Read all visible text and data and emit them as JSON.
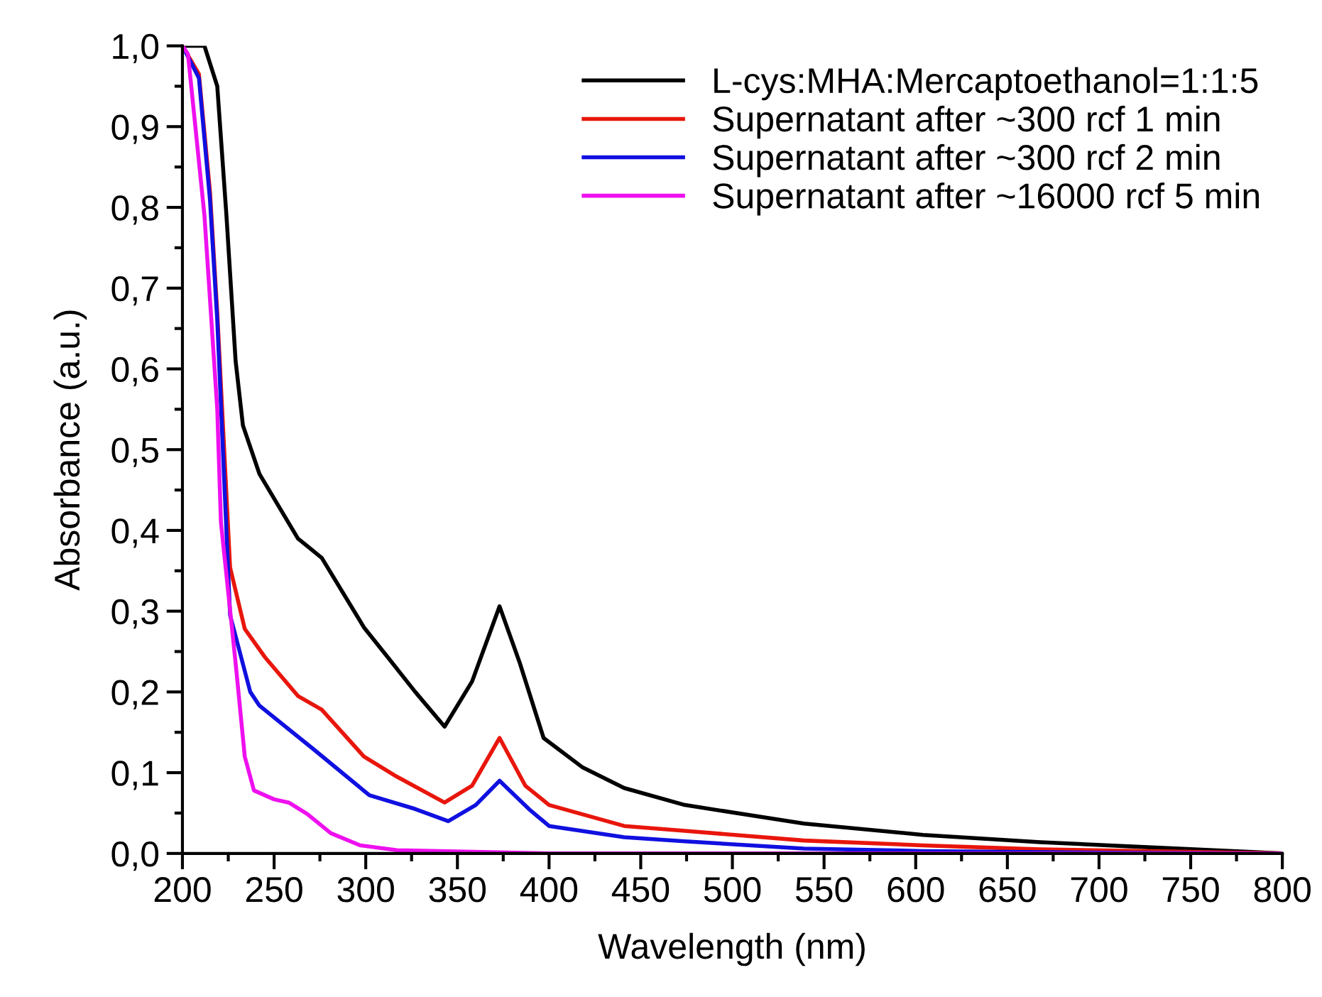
{
  "chart_data": {
    "type": "line",
    "xlabel": "Wavelength (nm)",
    "ylabel": "Absorbance (a.u.)",
    "xlim": [
      200,
      800
    ],
    "ylim": [
      0,
      1.0
    ],
    "xticks": [
      200,
      {
        "value": 225,
        "label": null
      },
      250,
      {
        "value": 275,
        "label": null
      },
      300,
      {
        "value": 325,
        "label": null
      },
      350,
      {
        "value": 375,
        "label": null
      },
      400,
      {
        "value": 425,
        "label": null
      },
      450,
      {
        "value": 475,
        "label": null
      },
      500,
      {
        "value": 525,
        "label": null
      },
      550,
      {
        "value": 575,
        "label": null
      },
      600,
      {
        "value": 625,
        "label": null
      },
      650,
      {
        "value": 675,
        "label": null
      },
      700,
      {
        "value": 725,
        "label": null
      },
      750,
      {
        "value": 775,
        "label": null
      },
      800
    ],
    "yticks": [
      {
        "value": 0,
        "label": "0,0"
      },
      {
        "value": 0.05,
        "label": null
      },
      {
        "value": 0.1,
        "label": "0,1"
      },
      {
        "value": 0.15,
        "label": null
      },
      {
        "value": 0.2,
        "label": "0,2"
      },
      {
        "value": 0.25,
        "label": null
      },
      {
        "value": 0.3,
        "label": "0,3"
      },
      {
        "value": 0.35,
        "label": null
      },
      {
        "value": 0.4,
        "label": "0,4"
      },
      {
        "value": 0.45,
        "label": null
      },
      {
        "value": 0.5,
        "label": "0,5"
      },
      {
        "value": 0.55,
        "label": null
      },
      {
        "value": 0.6,
        "label": "0,6"
      },
      {
        "value": 0.65,
        "label": null
      },
      {
        "value": 0.7,
        "label": "0,7"
      },
      {
        "value": 0.75,
        "label": null
      },
      {
        "value": 0.8,
        "label": "0,8"
      },
      {
        "value": 0.85,
        "label": null
      },
      {
        "value": 0.9,
        "label": "0,9"
      },
      {
        "value": 0.95,
        "label": null
      },
      {
        "value": 1.0,
        "label": "1,0"
      }
    ],
    "grid": false,
    "legend": "top right",
    "marker": "none",
    "line_style": "solid",
    "series": [
      {
        "name": "L-cys:MHA:Mercaptoethanol=1:1:5",
        "color": "#000000",
        "x": [
          200,
          212,
          219,
          224,
          229,
          233,
          242,
          263,
          276,
          299,
          312,
          327,
          343,
          358,
          373,
          384,
          397,
          418,
          441,
          474,
          539,
          604,
          668,
          733,
          800
        ],
        "values": [
          1.0,
          1.0,
          0.95,
          0.79,
          0.61,
          0.53,
          0.47,
          0.39,
          0.366,
          0.28,
          0.243,
          0.2,
          0.157,
          0.213,
          0.306,
          0.236,
          0.143,
          0.107,
          0.081,
          0.06,
          0.037,
          0.023,
          0.014,
          0.007,
          0.0
        ]
      },
      {
        "name": "Supernatant after ~300 rcf 1 min",
        "color": "#e8160c",
        "x": [
          200,
          209,
          215,
          219,
          226,
          234,
          245,
          263,
          276,
          299,
          317,
          343,
          358,
          373,
          387,
          400,
          441,
          474,
          539,
          604,
          668,
          800
        ],
        "values": [
          1.0,
          0.965,
          0.82,
          0.67,
          0.354,
          0.278,
          0.243,
          0.195,
          0.178,
          0.12,
          0.095,
          0.063,
          0.084,
          0.143,
          0.084,
          0.06,
          0.034,
          0.028,
          0.016,
          0.01,
          0.005,
          0.0
        ]
      },
      {
        "name": "Supernatant after ~300 rcf 2 min",
        "color": "#1010e0",
        "x": [
          200,
          209,
          215,
          219,
          226,
          237,
          242,
          271,
          302,
          327,
          345,
          360,
          373,
          389,
          400,
          441,
          474,
          539,
          604,
          700,
          800
        ],
        "values": [
          1.0,
          0.96,
          0.81,
          0.66,
          0.295,
          0.2,
          0.183,
          0.13,
          0.072,
          0.055,
          0.04,
          0.06,
          0.09,
          0.055,
          0.034,
          0.02,
          0.015,
          0.006,
          0.003,
          0.001,
          0.0
        ]
      },
      {
        "name": "Supernatant after ~16000 rcf 5 min",
        "color": "#ee10ee",
        "x": [
          200,
          203,
          212,
          219,
          221,
          229,
          234,
          239,
          250,
          258,
          268,
          281,
          297,
          317,
          400,
          800
        ],
        "values": [
          1.0,
          0.99,
          0.79,
          0.55,
          0.41,
          0.236,
          0.12,
          0.078,
          0.067,
          0.063,
          0.049,
          0.025,
          0.01,
          0.004,
          0.0,
          0.0
        ]
      }
    ]
  }
}
